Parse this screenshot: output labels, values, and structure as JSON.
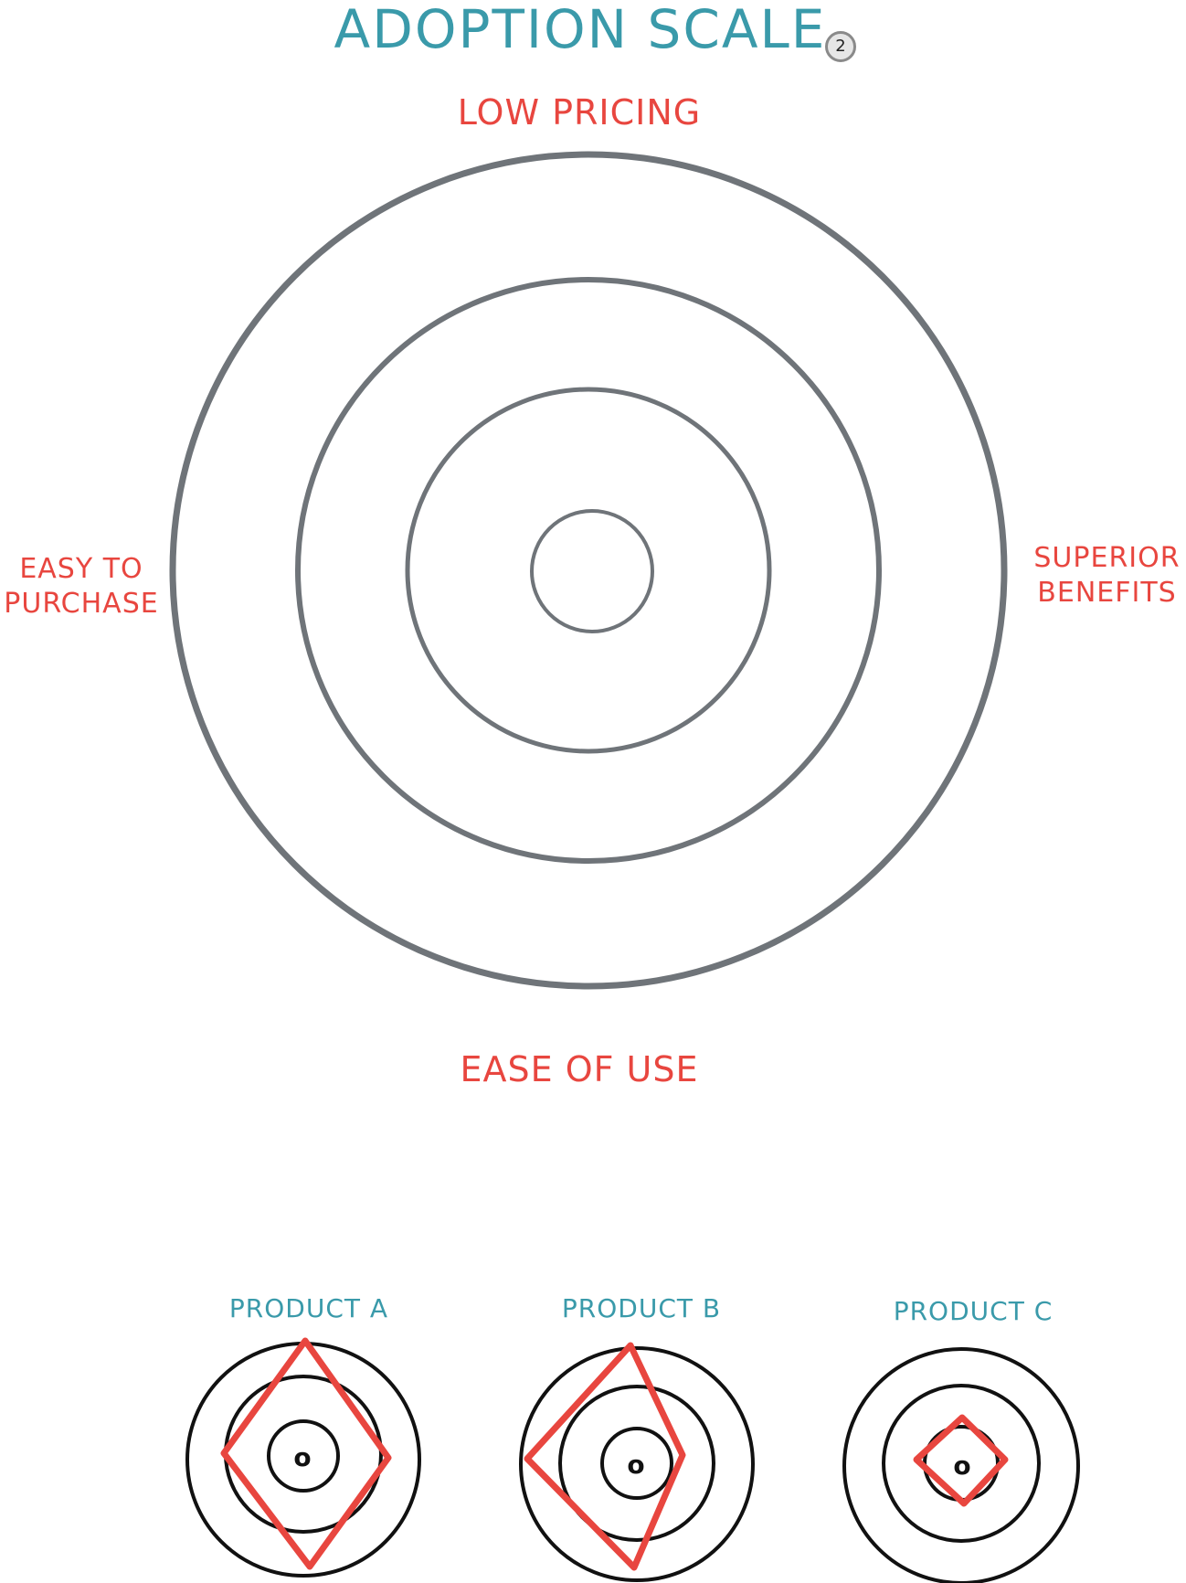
{
  "title": "ADOPTION SCALE",
  "badge": "2",
  "axes": {
    "top": "LOW PRICING",
    "bottom": "EASE OF USE",
    "left_line1": "EASY TO",
    "left_line2": "PURCHASE",
    "right_line1": "SUPERIOR",
    "right_line2": "BENEFITS"
  },
  "center_mark": "o",
  "products": [
    {
      "label": "PRODUCT A"
    },
    {
      "label": "PRODUCT B"
    },
    {
      "label": "PRODUCT C"
    }
  ],
  "colors": {
    "title": "#3a9aaa",
    "axis_label": "#e8463f",
    "product_label": "#3a9aaa",
    "main_ring": "#6f7479",
    "small_ring": "#111111",
    "shape": "#e8463f"
  }
}
